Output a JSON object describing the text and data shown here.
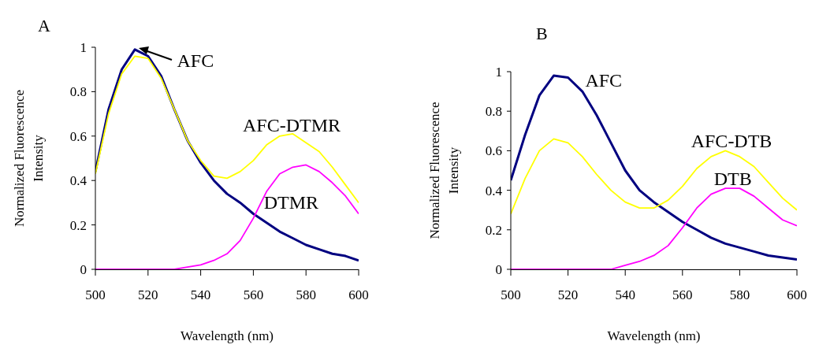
{
  "chart_data": [
    {
      "type": "line",
      "title": "A",
      "xlabel": "Wavelength (nm)",
      "ylabel": "Normalized Fluorescence Intensity",
      "x": [
        500,
        505,
        510,
        515,
        520,
        525,
        530,
        535,
        540,
        545,
        550,
        555,
        560,
        565,
        570,
        575,
        580,
        585,
        590,
        595,
        600
      ],
      "series": [
        {
          "name": "AFC",
          "color": "#000080",
          "values": [
            0.44,
            0.72,
            0.9,
            0.99,
            0.96,
            0.87,
            0.72,
            0.58,
            0.48,
            0.4,
            0.34,
            0.3,
            0.25,
            0.21,
            0.17,
            0.14,
            0.11,
            0.09,
            0.07,
            0.06,
            0.04
          ]
        },
        {
          "name": "AFC-DTMR",
          "color": "#ffff00",
          "values": [
            0.43,
            0.7,
            0.88,
            0.96,
            0.95,
            0.86,
            0.72,
            0.58,
            0.49,
            0.42,
            0.41,
            0.44,
            0.49,
            0.56,
            0.6,
            0.61,
            0.57,
            0.53,
            0.46,
            0.38,
            0.3
          ]
        },
        {
          "name": "DTMR",
          "color": "#ff00ff",
          "values": [
            0,
            0,
            0,
            0,
            0,
            0,
            0,
            0.01,
            0.02,
            0.04,
            0.07,
            0.13,
            0.23,
            0.35,
            0.43,
            0.46,
            0.47,
            0.44,
            0.39,
            0.33,
            0.25
          ]
        }
      ],
      "xlim": [
        500,
        600
      ],
      "xticks": [
        500,
        520,
        540,
        560,
        580,
        600
      ],
      "ylim": [
        0,
        1
      ],
      "yticks": [
        0,
        0.2,
        0.4,
        0.6,
        0.8,
        1
      ],
      "grid": false,
      "legend": false,
      "marker": "none",
      "line_style": "solid"
    },
    {
      "type": "line",
      "title": "B",
      "xlabel": "Wavelength (nm)",
      "ylabel": "Normalized Fluorescence Intensity",
      "x": [
        500,
        505,
        510,
        515,
        520,
        525,
        530,
        535,
        540,
        545,
        550,
        555,
        560,
        565,
        570,
        575,
        580,
        585,
        590,
        595,
        600
      ],
      "series": [
        {
          "name": "AFC",
          "color": "#000080",
          "values": [
            0.45,
            0.68,
            0.88,
            0.98,
            0.97,
            0.9,
            0.78,
            0.64,
            0.5,
            0.4,
            0.34,
            0.29,
            0.24,
            0.2,
            0.16,
            0.13,
            0.11,
            0.09,
            0.07,
            0.06,
            0.05
          ]
        },
        {
          "name": "AFC-DTB",
          "color": "#ffff00",
          "values": [
            0.28,
            0.46,
            0.6,
            0.66,
            0.64,
            0.57,
            0.48,
            0.4,
            0.34,
            0.31,
            0.31,
            0.35,
            0.42,
            0.51,
            0.57,
            0.6,
            0.57,
            0.52,
            0.44,
            0.36,
            0.3
          ]
        },
        {
          "name": "DTB",
          "color": "#ff00ff",
          "values": [
            0,
            0,
            0,
            0,
            0,
            0,
            0,
            0,
            0.02,
            0.04,
            0.07,
            0.12,
            0.21,
            0.31,
            0.38,
            0.41,
            0.41,
            0.37,
            0.31,
            0.25,
            0.22
          ]
        }
      ],
      "xlim": [
        500,
        600
      ],
      "xticks": [
        500,
        520,
        540,
        560,
        580,
        600
      ],
      "ylim": [
        0,
        1
      ],
      "yticks": [
        0,
        0.2,
        0.4,
        0.6,
        0.8,
        1
      ],
      "grid": false,
      "legend": false,
      "marker": "none",
      "line_style": "solid"
    }
  ]
}
